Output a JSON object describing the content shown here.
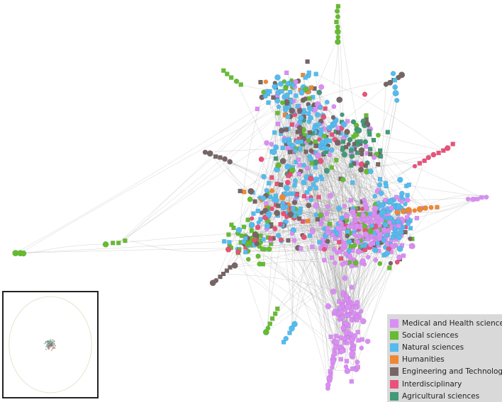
{
  "legend": {
    "items": [
      {
        "label": "Medical and Health sciences",
        "color": "#d98ef2",
        "icon": "square-swatch"
      },
      {
        "label": "Social sciences",
        "color": "#66bb33",
        "icon": "square-swatch"
      },
      {
        "label": "Natural sciences",
        "color": "#55bbee",
        "icon": "square-swatch"
      },
      {
        "label": "Humanities",
        "color": "#ee8833",
        "icon": "square-swatch"
      },
      {
        "label": "Engineering and Technology",
        "color": "#776666",
        "icon": "square-swatch"
      },
      {
        "label": "Interdisciplinary",
        "color": "#e8527a",
        "icon": "square-swatch"
      },
      {
        "label": "Agricultural sciences",
        "color": "#449977",
        "icon": "square-swatch"
      }
    ]
  },
  "graph": {
    "edge_color": "#999999",
    "background": "#ffffff"
  },
  "minimap": {
    "border_color": "#222222",
    "ellipse_color": "#e6e2cc"
  }
}
